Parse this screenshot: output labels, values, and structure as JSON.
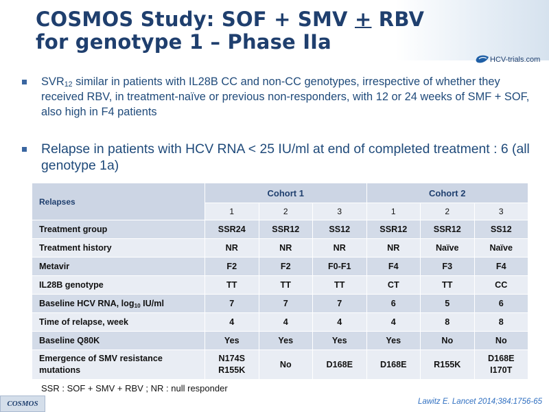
{
  "slide": {
    "title": {
      "line1_prefix": "COSMOS Study: SOF + SMV ",
      "line1_pm": "+",
      "line1_suffix": " RBV",
      "line2": "for genotype 1 – Phase IIa"
    },
    "logo_text": "HCV-trials.com",
    "bullets": [
      {
        "text_before": "SVR",
        "subscript": "12",
        "text_after": " similar in patients with IL28B CC and non-CC genotypes, irrespective of whether they received RBV, in treatment-naïve or previous non-responders, with 12 or 24 weeks of SMF + SOF, also high in F4 patients"
      },
      {
        "text": "Relapse in patients with HCV RNA < 25 IU/ml at end of completed treatment : 6 (all genotype 1a)"
      }
    ],
    "table": {
      "corner_label": "Relapses",
      "cohorts": [
        "Cohort 1",
        "Cohort 2"
      ],
      "arms": [
        "1",
        "2",
        "3",
        "1",
        "2",
        "3"
      ],
      "rows": [
        {
          "label": "Treatment group",
          "values": [
            "SSR24",
            "SSR12",
            "SS12",
            "SSR12",
            "SSR12",
            "SS12"
          ]
        },
        {
          "label": "Treatment history",
          "values": [
            "NR",
            "NR",
            "NR",
            "NR",
            "Naïve",
            "Naïve"
          ]
        },
        {
          "label": "Metavir",
          "values": [
            "F2",
            "F2",
            "F0-F1",
            "F4",
            "F3",
            "F4"
          ]
        },
        {
          "label": "IL28B genotype",
          "values": [
            "TT",
            "TT",
            "TT",
            "CT",
            "TT",
            "CC"
          ]
        },
        {
          "label_before": "Baseline HCV RNA, log",
          "label_sub": "10",
          "label_after": " IU/ml",
          "values": [
            "7",
            "7",
            "7",
            "6",
            "5",
            "6"
          ]
        },
        {
          "label": "Time of relapse, week",
          "values": [
            "4",
            "4",
            "4",
            "4",
            "8",
            "8"
          ]
        },
        {
          "label": "Baseline Q80K",
          "values": [
            "Yes",
            "Yes",
            "Yes",
            "Yes",
            "No",
            "No"
          ]
        },
        {
          "label": "Emergence of SMV resistance mutations",
          "values": [
            {
              "l1": "N174S",
              "l2": "R155K"
            },
            "No",
            "D168E",
            "D168E",
            "R155K",
            {
              "l1": "D168E",
              "l2": "I170T"
            }
          ]
        }
      ]
    },
    "footnote": "SSR : SOF + SMV + RBV ; NR : null responder",
    "tag": "COSMOS",
    "reference": "Lawitz  E. Lancet 2014;384:1756-65",
    "colors": {
      "title": "#1f3f6e",
      "bullet_text": "#1f4a7a",
      "table_header": "#ccd5e4",
      "table_row_dark": "#d3dbe8",
      "table_row_light": "#e9edf4",
      "reference": "#2f6fc1"
    }
  }
}
